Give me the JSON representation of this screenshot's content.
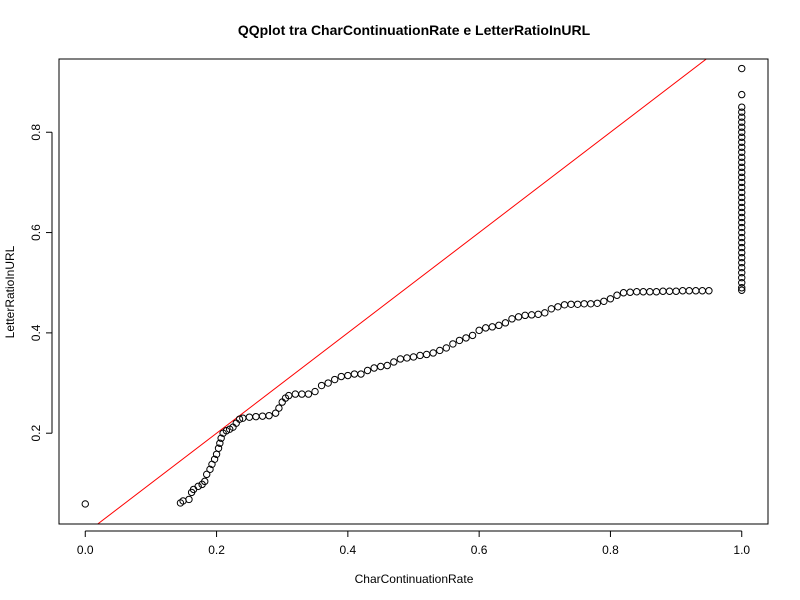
{
  "chart_data": {
    "type": "scatter",
    "title": "QQplot tra CharContinuationRate e LetterRatioInURL",
    "xlabel": "CharContinuationRate",
    "ylabel": "LetterRatioInURL",
    "xlim": [
      -0.04,
      1.04
    ],
    "ylim": [
      0.019,
      0.946
    ],
    "xticks": [
      0.0,
      0.2,
      0.4,
      0.6,
      0.8,
      1.0
    ],
    "xtick_labels": [
      "0.0",
      "0.2",
      "0.4",
      "0.6",
      "0.8",
      "1.0"
    ],
    "yticks": [
      0.2,
      0.4,
      0.6,
      0.8
    ],
    "ytick_labels": [
      "0.2",
      "0.4",
      "0.6",
      "0.8"
    ],
    "reference_line": {
      "intercept": 0.0,
      "slope": 1.0,
      "color": "#ff0000"
    },
    "point_style": {
      "shape": "open-circle",
      "color": "#000000"
    },
    "series": [
      {
        "points": [
          [
            0.0,
            0.059
          ],
          [
            0.145,
            0.061
          ],
          [
            0.149,
            0.065
          ],
          [
            0.158,
            0.068
          ],
          [
            0.162,
            0.082
          ],
          [
            0.165,
            0.088
          ],
          [
            0.172,
            0.094
          ],
          [
            0.178,
            0.098
          ],
          [
            0.182,
            0.104
          ],
          [
            0.185,
            0.118
          ],
          [
            0.19,
            0.128
          ],
          [
            0.193,
            0.138
          ],
          [
            0.197,
            0.148
          ],
          [
            0.2,
            0.158
          ],
          [
            0.203,
            0.17
          ],
          [
            0.205,
            0.18
          ],
          [
            0.207,
            0.19
          ],
          [
            0.21,
            0.2
          ],
          [
            0.215,
            0.205
          ],
          [
            0.22,
            0.208
          ],
          [
            0.225,
            0.212
          ],
          [
            0.23,
            0.22
          ],
          [
            0.235,
            0.228
          ],
          [
            0.24,
            0.23
          ],
          [
            0.25,
            0.232
          ],
          [
            0.26,
            0.233
          ],
          [
            0.27,
            0.234
          ],
          [
            0.28,
            0.235
          ],
          [
            0.29,
            0.24
          ],
          [
            0.295,
            0.25
          ],
          [
            0.3,
            0.262
          ],
          [
            0.305,
            0.27
          ],
          [
            0.31,
            0.275
          ],
          [
            0.32,
            0.278
          ],
          [
            0.33,
            0.278
          ],
          [
            0.34,
            0.278
          ],
          [
            0.35,
            0.283
          ],
          [
            0.36,
            0.295
          ],
          [
            0.37,
            0.3
          ],
          [
            0.38,
            0.307
          ],
          [
            0.39,
            0.313
          ],
          [
            0.4,
            0.315
          ],
          [
            0.41,
            0.318
          ],
          [
            0.42,
            0.318
          ],
          [
            0.43,
            0.325
          ],
          [
            0.44,
            0.33
          ],
          [
            0.45,
            0.333
          ],
          [
            0.46,
            0.335
          ],
          [
            0.47,
            0.342
          ],
          [
            0.48,
            0.348
          ],
          [
            0.49,
            0.35
          ],
          [
            0.5,
            0.352
          ],
          [
            0.51,
            0.355
          ],
          [
            0.52,
            0.357
          ],
          [
            0.53,
            0.36
          ],
          [
            0.54,
            0.365
          ],
          [
            0.55,
            0.37
          ],
          [
            0.56,
            0.378
          ],
          [
            0.57,
            0.385
          ],
          [
            0.58,
            0.39
          ],
          [
            0.59,
            0.395
          ],
          [
            0.6,
            0.405
          ],
          [
            0.61,
            0.41
          ],
          [
            0.62,
            0.412
          ],
          [
            0.63,
            0.415
          ],
          [
            0.64,
            0.42
          ],
          [
            0.65,
            0.428
          ],
          [
            0.66,
            0.432
          ],
          [
            0.67,
            0.435
          ],
          [
            0.68,
            0.436
          ],
          [
            0.69,
            0.437
          ],
          [
            0.7,
            0.44
          ],
          [
            0.71,
            0.448
          ],
          [
            0.72,
            0.452
          ],
          [
            0.73,
            0.456
          ],
          [
            0.74,
            0.457
          ],
          [
            0.75,
            0.457
          ],
          [
            0.76,
            0.458
          ],
          [
            0.77,
            0.458
          ],
          [
            0.78,
            0.459
          ],
          [
            0.79,
            0.463
          ],
          [
            0.8,
            0.468
          ],
          [
            0.81,
            0.475
          ],
          [
            0.82,
            0.48
          ],
          [
            0.83,
            0.481
          ],
          [
            0.84,
            0.482
          ],
          [
            0.85,
            0.482
          ],
          [
            0.86,
            0.482
          ],
          [
            0.87,
            0.482
          ],
          [
            0.88,
            0.483
          ],
          [
            0.89,
            0.483
          ],
          [
            0.9,
            0.483
          ],
          [
            0.91,
            0.484
          ],
          [
            0.92,
            0.484
          ],
          [
            0.93,
            0.484
          ],
          [
            0.94,
            0.484
          ],
          [
            0.95,
            0.484
          ],
          [
            1.0,
            0.485
          ],
          [
            1.0,
            0.49
          ],
          [
            1.0,
            0.5
          ],
          [
            1.0,
            0.51
          ],
          [
            1.0,
            0.52
          ],
          [
            1.0,
            0.53
          ],
          [
            1.0,
            0.54
          ],
          [
            1.0,
            0.55
          ],
          [
            1.0,
            0.56
          ],
          [
            1.0,
            0.57
          ],
          [
            1.0,
            0.58
          ],
          [
            1.0,
            0.59
          ],
          [
            1.0,
            0.6
          ],
          [
            1.0,
            0.61
          ],
          [
            1.0,
            0.62
          ],
          [
            1.0,
            0.63
          ],
          [
            1.0,
            0.64
          ],
          [
            1.0,
            0.65
          ],
          [
            1.0,
            0.66
          ],
          [
            1.0,
            0.67
          ],
          [
            1.0,
            0.68
          ],
          [
            1.0,
            0.69
          ],
          [
            1.0,
            0.7
          ],
          [
            1.0,
            0.71
          ],
          [
            1.0,
            0.72
          ],
          [
            1.0,
            0.73
          ],
          [
            1.0,
            0.74
          ],
          [
            1.0,
            0.75
          ],
          [
            1.0,
            0.76
          ],
          [
            1.0,
            0.77
          ],
          [
            1.0,
            0.78
          ],
          [
            1.0,
            0.79
          ],
          [
            1.0,
            0.8
          ],
          [
            1.0,
            0.81
          ],
          [
            1.0,
            0.82
          ],
          [
            1.0,
            0.83
          ],
          [
            1.0,
            0.84
          ],
          [
            1.0,
            0.85
          ],
          [
            1.0,
            0.875
          ],
          [
            1.0,
            0.927
          ]
        ]
      }
    ]
  }
}
